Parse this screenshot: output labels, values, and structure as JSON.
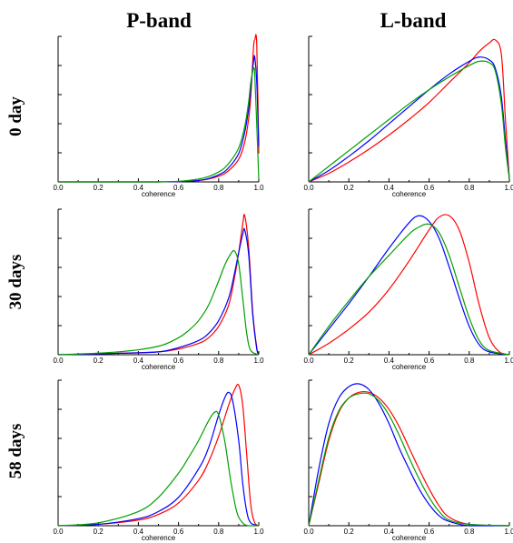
{
  "column_titles": [
    "P-band",
    "L-band"
  ],
  "row_titles": [
    "0 day",
    "30 days",
    "58 days"
  ],
  "colors": {
    "series_a": "#ff0000",
    "series_b": "#0000ff",
    "series_c": "#00a000"
  },
  "chart_data": [
    {
      "type": "line",
      "band": "P-band",
      "time": "0 day",
      "xlabel": "coherence",
      "xlim": [
        0,
        1
      ],
      "xticks": [
        "0.0",
        "0.2",
        "0.4",
        "0.6",
        "0.8",
        "1.0"
      ],
      "series": [
        {
          "color": "#ff0000",
          "x": [
            0,
            0.5,
            0.7,
            0.8,
            0.85,
            0.9,
            0.93,
            0.95,
            0.96,
            0.97,
            0.975,
            0.98,
            0.99,
            1.0
          ],
          "y": [
            0,
            0,
            0.01,
            0.04,
            0.08,
            0.16,
            0.28,
            0.45,
            0.6,
            0.85,
            0.97,
            1.0,
            0.97,
            0.2
          ]
        },
        {
          "color": "#0000ff",
          "x": [
            0,
            0.5,
            0.7,
            0.8,
            0.85,
            0.9,
            0.93,
            0.95,
            0.96,
            0.97,
            0.975,
            0.98,
            0.99,
            1.0
          ],
          "y": [
            0,
            0,
            0.01,
            0.05,
            0.1,
            0.2,
            0.35,
            0.52,
            0.66,
            0.8,
            0.86,
            0.88,
            0.7,
            0.25
          ]
        },
        {
          "color": "#00a000",
          "x": [
            0,
            0.5,
            0.7,
            0.8,
            0.85,
            0.9,
            0.93,
            0.95,
            0.96,
            0.97,
            0.975,
            0.98,
            0.99,
            1.0
          ],
          "y": [
            0,
            0,
            0.02,
            0.07,
            0.13,
            0.24,
            0.39,
            0.57,
            0.7,
            0.78,
            0.8,
            0.76,
            0.4,
            0.02
          ]
        }
      ]
    },
    {
      "type": "line",
      "band": "L-band",
      "time": "0 day",
      "xlabel": "coherence",
      "xlim": [
        0,
        1
      ],
      "xticks": [
        "0.0",
        "0.2",
        "0.4",
        "0.6",
        "0.8",
        "1.0"
      ],
      "series": [
        {
          "color": "#ff0000",
          "x": [
            0,
            0.1,
            0.2,
            0.3,
            0.4,
            0.5,
            0.6,
            0.7,
            0.8,
            0.85,
            0.9,
            0.93,
            0.96,
            0.98,
            1.0
          ],
          "y": [
            0,
            0.06,
            0.14,
            0.23,
            0.33,
            0.44,
            0.56,
            0.7,
            0.84,
            0.92,
            0.98,
            1.0,
            0.9,
            0.45,
            0.02
          ]
        },
        {
          "color": "#0000ff",
          "x": [
            0,
            0.1,
            0.2,
            0.3,
            0.4,
            0.5,
            0.6,
            0.7,
            0.8,
            0.85,
            0.9,
            0.93,
            0.96,
            0.98,
            1.0
          ],
          "y": [
            0,
            0.08,
            0.18,
            0.29,
            0.41,
            0.53,
            0.65,
            0.76,
            0.85,
            0.88,
            0.86,
            0.8,
            0.6,
            0.3,
            0.02
          ]
        },
        {
          "color": "#00a000",
          "x": [
            0,
            0.1,
            0.2,
            0.3,
            0.4,
            0.5,
            0.6,
            0.7,
            0.8,
            0.85,
            0.9,
            0.93,
            0.96,
            0.98,
            1.0
          ],
          "y": [
            0,
            0.11,
            0.22,
            0.33,
            0.44,
            0.55,
            0.65,
            0.74,
            0.82,
            0.85,
            0.84,
            0.78,
            0.55,
            0.25,
            0.02
          ]
        }
      ]
    },
    {
      "type": "line",
      "band": "P-band",
      "time": "30 days",
      "xlabel": "coherence",
      "xlim": [
        0,
        1
      ],
      "xticks": [
        "0.0",
        "0.2",
        "0.4",
        "0.6",
        "0.8",
        "1.0"
      ],
      "series": [
        {
          "color": "#ff0000",
          "x": [
            0,
            0.3,
            0.5,
            0.6,
            0.7,
            0.75,
            0.8,
            0.85,
            0.88,
            0.9,
            0.92,
            0.93,
            0.95,
            0.97,
            0.99,
            1.0
          ],
          "y": [
            0,
            0.01,
            0.02,
            0.04,
            0.08,
            0.12,
            0.2,
            0.35,
            0.55,
            0.72,
            0.92,
            0.98,
            0.75,
            0.3,
            0.05,
            0
          ]
        },
        {
          "color": "#0000ff",
          "x": [
            0,
            0.3,
            0.5,
            0.6,
            0.7,
            0.75,
            0.8,
            0.85,
            0.88,
            0.9,
            0.92,
            0.93,
            0.95,
            0.97,
            0.99,
            1.0
          ],
          "y": [
            0,
            0.01,
            0.02,
            0.05,
            0.1,
            0.15,
            0.24,
            0.4,
            0.58,
            0.72,
            0.85,
            0.88,
            0.7,
            0.28,
            0.04,
            0
          ]
        },
        {
          "color": "#00a000",
          "x": [
            0,
            0.3,
            0.5,
            0.6,
            0.65,
            0.7,
            0.75,
            0.8,
            0.83,
            0.86,
            0.88,
            0.9,
            0.92,
            0.94,
            0.96,
            1.0
          ],
          "y": [
            0,
            0.02,
            0.06,
            0.12,
            0.17,
            0.24,
            0.35,
            0.52,
            0.63,
            0.71,
            0.73,
            0.64,
            0.4,
            0.15,
            0.03,
            0
          ]
        }
      ]
    },
    {
      "type": "line",
      "band": "L-band",
      "time": "30 days",
      "xlabel": "coherence",
      "xlim": [
        0,
        1
      ],
      "xticks": [
        "0.0",
        "0.2",
        "0.4",
        "0.6",
        "0.8",
        "1.0"
      ],
      "series": [
        {
          "color": "#ff0000",
          "x": [
            0,
            0.1,
            0.2,
            0.3,
            0.4,
            0.5,
            0.6,
            0.65,
            0.7,
            0.75,
            0.8,
            0.85,
            0.9,
            0.95,
            1.0
          ],
          "y": [
            0,
            0.08,
            0.18,
            0.3,
            0.46,
            0.66,
            0.88,
            0.97,
            0.98,
            0.88,
            0.65,
            0.35,
            0.12,
            0.02,
            0
          ]
        },
        {
          "color": "#0000ff",
          "x": [
            0,
            0.1,
            0.2,
            0.3,
            0.4,
            0.5,
            0.55,
            0.6,
            0.65,
            0.7,
            0.75,
            0.8,
            0.85,
            0.9,
            1.0
          ],
          "y": [
            0,
            0.18,
            0.36,
            0.55,
            0.75,
            0.93,
            0.98,
            0.94,
            0.82,
            0.62,
            0.4,
            0.2,
            0.07,
            0.02,
            0
          ]
        },
        {
          "color": "#00a000",
          "x": [
            0,
            0.1,
            0.2,
            0.3,
            0.4,
            0.5,
            0.55,
            0.6,
            0.65,
            0.7,
            0.75,
            0.8,
            0.85,
            0.9,
            1.0
          ],
          "y": [
            0,
            0.2,
            0.38,
            0.55,
            0.7,
            0.85,
            0.9,
            0.92,
            0.86,
            0.7,
            0.48,
            0.26,
            0.1,
            0.03,
            0
          ]
        }
      ]
    },
    {
      "type": "line",
      "band": "P-band",
      "time": "58 days",
      "xlabel": "coherence",
      "xlim": [
        0,
        1
      ],
      "xticks": [
        "0.0",
        "0.2",
        "0.4",
        "0.6",
        "0.8",
        "1.0"
      ],
      "series": [
        {
          "color": "#ff0000",
          "x": [
            0,
            0.2,
            0.4,
            0.5,
            0.6,
            0.7,
            0.75,
            0.8,
            0.85,
            0.88,
            0.9,
            0.92,
            0.94,
            0.96,
            0.98,
            1.0
          ],
          "y": [
            0,
            0.01,
            0.04,
            0.08,
            0.16,
            0.32,
            0.45,
            0.63,
            0.85,
            0.96,
            0.99,
            0.85,
            0.5,
            0.15,
            0.02,
            0
          ]
        },
        {
          "color": "#0000ff",
          "x": [
            0,
            0.2,
            0.4,
            0.5,
            0.6,
            0.7,
            0.75,
            0.8,
            0.83,
            0.85,
            0.87,
            0.9,
            0.92,
            0.94,
            0.96,
            1.0
          ],
          "y": [
            0,
            0.01,
            0.05,
            0.1,
            0.2,
            0.4,
            0.55,
            0.78,
            0.9,
            0.94,
            0.88,
            0.6,
            0.3,
            0.1,
            0.02,
            0
          ]
        },
        {
          "color": "#00a000",
          "x": [
            0,
            0.2,
            0.4,
            0.5,
            0.6,
            0.65,
            0.7,
            0.75,
            0.78,
            0.8,
            0.83,
            0.86,
            0.89,
            0.92,
            0.95,
            1.0
          ],
          "y": [
            0,
            0.02,
            0.1,
            0.2,
            0.37,
            0.48,
            0.6,
            0.74,
            0.8,
            0.78,
            0.6,
            0.32,
            0.1,
            0.02,
            0,
            0
          ]
        }
      ]
    },
    {
      "type": "line",
      "band": "L-band",
      "time": "58 days",
      "xlabel": "coherence",
      "xlim": [
        0,
        1
      ],
      "xticks": [
        "0.0",
        "0.2",
        "0.4",
        "0.6",
        "0.8",
        "1.0"
      ],
      "series": [
        {
          "color": "#ff0000",
          "x": [
            0,
            0.05,
            0.1,
            0.15,
            0.2,
            0.25,
            0.3,
            0.35,
            0.4,
            0.45,
            0.5,
            0.55,
            0.6,
            0.65,
            0.7,
            0.8,
            1.0
          ],
          "y": [
            0,
            0.3,
            0.6,
            0.8,
            0.9,
            0.94,
            0.94,
            0.9,
            0.82,
            0.7,
            0.55,
            0.4,
            0.26,
            0.14,
            0.06,
            0.01,
            0
          ]
        },
        {
          "color": "#0000ff",
          "x": [
            0,
            0.05,
            0.1,
            0.15,
            0.2,
            0.25,
            0.3,
            0.35,
            0.4,
            0.45,
            0.5,
            0.55,
            0.6,
            0.65,
            0.7,
            0.8,
            1.0
          ],
          "y": [
            0,
            0.4,
            0.72,
            0.9,
            0.98,
            1.0,
            0.96,
            0.86,
            0.72,
            0.55,
            0.4,
            0.26,
            0.15,
            0.07,
            0.03,
            0,
            0
          ]
        },
        {
          "color": "#00a000",
          "x": [
            0,
            0.05,
            0.1,
            0.15,
            0.2,
            0.25,
            0.3,
            0.35,
            0.4,
            0.45,
            0.5,
            0.55,
            0.6,
            0.65,
            0.7,
            0.8,
            1.0
          ],
          "y": [
            0,
            0.32,
            0.62,
            0.81,
            0.9,
            0.93,
            0.93,
            0.88,
            0.78,
            0.64,
            0.48,
            0.33,
            0.2,
            0.1,
            0.04,
            0.01,
            0
          ]
        }
      ]
    }
  ]
}
